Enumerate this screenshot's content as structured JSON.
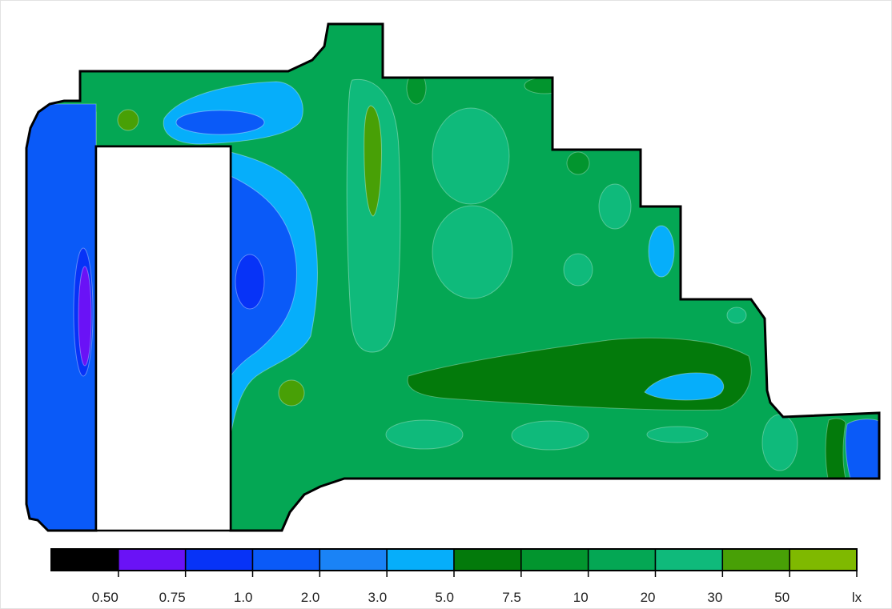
{
  "chart_data": {
    "type": "heatmap",
    "title": "",
    "xlabel": "",
    "ylabel": "",
    "unit_label": "lx",
    "legend_position": "bottom",
    "colorbar": {
      "thresholds": [
        "0.50",
        "0.75",
        "1.0",
        "2.0",
        "3.0",
        "5.0",
        "7.5",
        "10",
        "20",
        "30",
        "50"
      ],
      "bins": [
        {
          "range": "< 0.50",
          "color": "#000000"
        },
        {
          "range": "0.50–0.75",
          "color": "#6a12f6"
        },
        {
          "range": "0.75–1.0",
          "color": "#0733f7"
        },
        {
          "range": "1.0–2.0",
          "color": "#0a5af8"
        },
        {
          "range": "2.0–3.0",
          "color": "#1a83f6"
        },
        {
          "range": "3.0–5.0",
          "color": "#06aefa"
        },
        {
          "range": "5.0–7.5",
          "color": "#037a0b"
        },
        {
          "range": "7.5–10",
          "color": "#02952e"
        },
        {
          "range": "10–20",
          "color": "#04a754"
        },
        {
          "range": "20–30",
          "color": "#0fba7b"
        },
        {
          "range": "30–50",
          "color": "#48a006"
        },
        {
          "range": "> 50",
          "color": "#7fb900"
        }
      ]
    },
    "regions": [
      {
        "name": "field",
        "bin": "10–20"
      },
      {
        "name": "left strip",
        "bin": "1.0–2.0"
      },
      {
        "name": "left strip core",
        "bin": "0.75–1.0"
      },
      {
        "name": "left strip minimum",
        "bin": "0.50–0.75"
      },
      {
        "name": "right of void",
        "bin": "3.0–5.0"
      },
      {
        "name": "right of void core",
        "bin": "1.0–2.0"
      },
      {
        "name": "right of void minimum",
        "bin": "0.75–1.0"
      },
      {
        "name": "top-left lobe",
        "bin": "3.0–5.0"
      },
      {
        "name": "top-left lobe core",
        "bin": "1.0–2.0"
      },
      {
        "name": "hotspot top-left",
        "bin": "30–50"
      },
      {
        "name": "hotspot lower-left",
        "bin": "30–50"
      },
      {
        "name": "vertical ridge",
        "bin": "20–30"
      },
      {
        "name": "vertical ridge peak",
        "bin": "30–50"
      },
      {
        "name": "right notch low",
        "bin": "3.0–5.0"
      },
      {
        "name": "lower right low",
        "bin": "3.0–5.0"
      },
      {
        "name": "far right low",
        "bin": "1.0–2.0"
      }
    ]
  }
}
